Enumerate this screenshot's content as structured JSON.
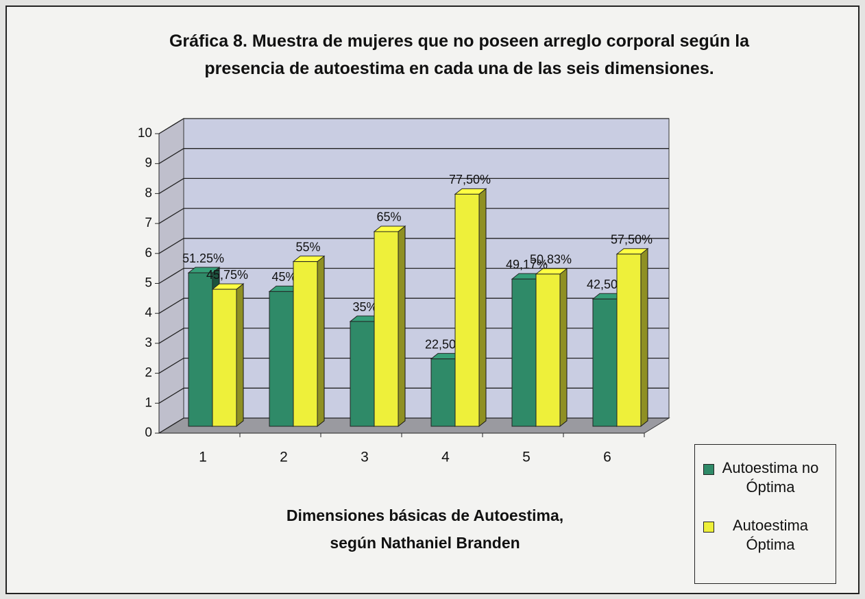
{
  "chart_data": {
    "type": "bar3d",
    "title": "Gráfica 8. Muestra de mujeres que no poseen arreglo corporal según la presencia de autoestima en cada una de las seis dimensiones.",
    "x_label": "Dimensiones básicas de  Autoestima, según Nathaniel Branden",
    "categories": [
      "1",
      "2",
      "3",
      "4",
      "5",
      "6"
    ],
    "series": [
      {
        "name": "Autoestima no Óptima",
        "color": "#2f8a68",
        "values": [
          5.125,
          4.5,
          3.5,
          2.25,
          4.917,
          4.25
        ],
        "value_labels": [
          "51.25%",
          "45%",
          "35%",
          "22,50%",
          "49,17%",
          "42,50%"
        ]
      },
      {
        "name": "Autoestima Óptima",
        "color": "#eef03a",
        "values": [
          4.575,
          5.5,
          6.5,
          7.75,
          5.083,
          5.75
        ],
        "value_labels": [
          "45,75%",
          "55%",
          "65%",
          "77,50%",
          "50,83%",
          "57,50%"
        ]
      }
    ],
    "ylim": [
      0,
      10
    ],
    "yticks": [
      0,
      1,
      2,
      3,
      4,
      5,
      6,
      7,
      8,
      9,
      10
    ],
    "grid": true,
    "legend": "right"
  }
}
